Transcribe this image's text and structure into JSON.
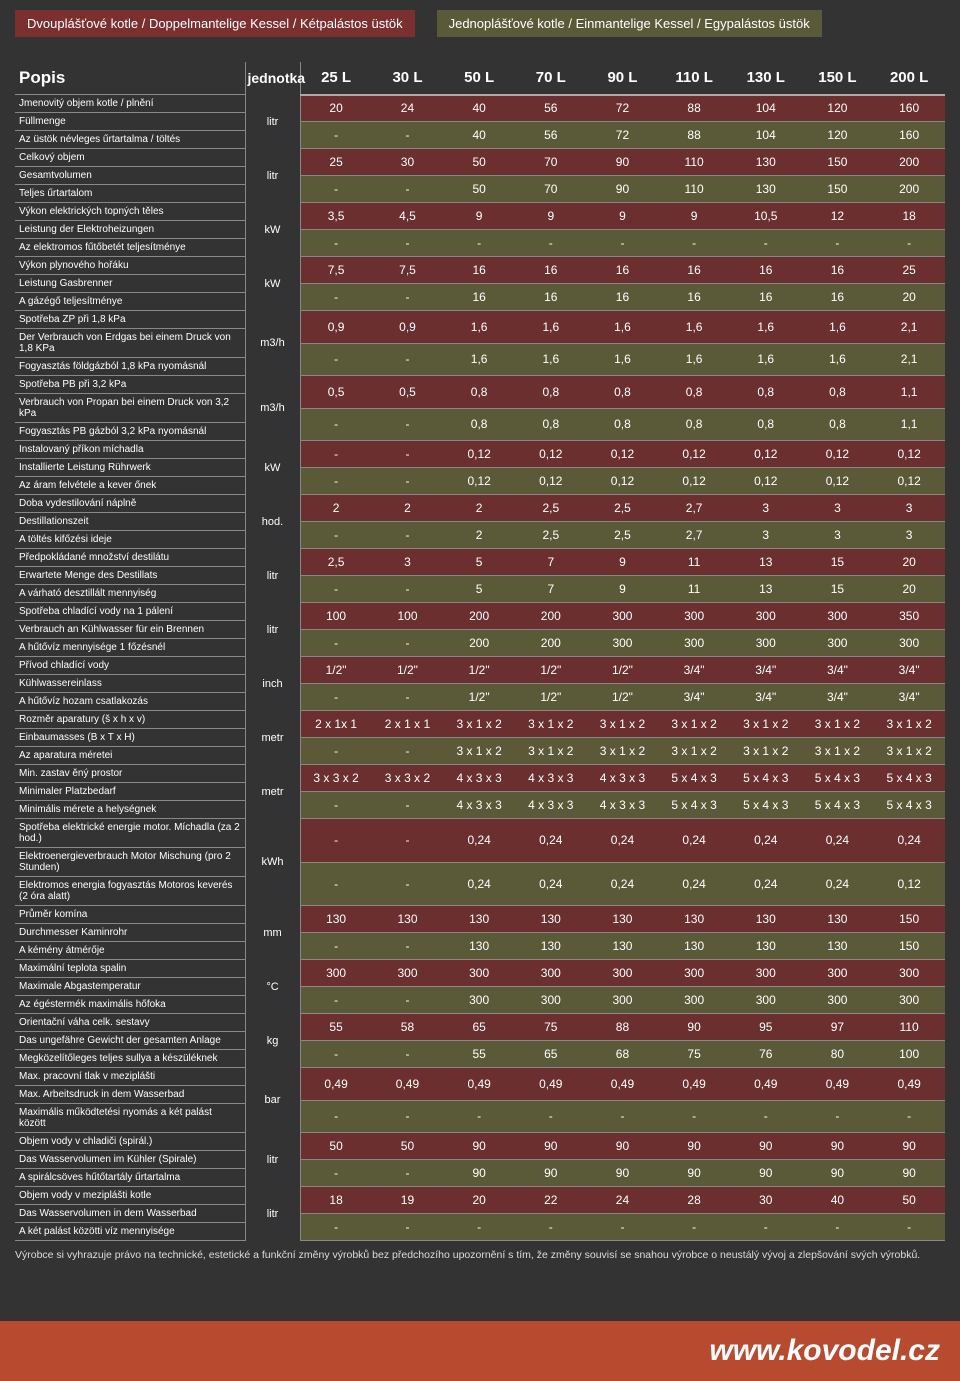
{
  "tabs": {
    "left": "Dvouplášťové kotle / Doppelmantelige Kessel / Kétpalástos üstök",
    "right": "Jednoplášťové kotle / Einmantelige Kessel / Egypalástos üstök"
  },
  "header": {
    "popis": "Popis",
    "unit": "jednotka",
    "cols": [
      "25 L",
      "30 L",
      "50 L",
      "70 L",
      "90 L",
      "110 L",
      "130 L",
      "150 L",
      "200 L"
    ]
  },
  "units": [
    "litr",
    "litr",
    "kW",
    "kW",
    "m3/h",
    "m3/h",
    "kW",
    "hod.",
    "litr",
    "litr",
    "inch",
    "metr",
    "metr",
    "kWh",
    "mm",
    "°C",
    "kg",
    "bar",
    "litr",
    "litr"
  ],
  "groups": [
    {
      "desc": [
        "Jmenovitý objem kotle / plnění",
        "Füllmenge",
        "Az üstök névleges űrtartalma / töltés"
      ],
      "rows": [
        [
          "20",
          "24",
          "40",
          "56",
          "72",
          "88",
          "104",
          "120",
          "160"
        ],
        [
          "-",
          "-",
          "40",
          "56",
          "72",
          "88",
          "104",
          "120",
          "160"
        ]
      ]
    },
    {
      "desc": [
        "Celkový objem",
        "Gesamtvolumen",
        "Teljes űrtartalom"
      ],
      "rows": [
        [
          "25",
          "30",
          "50",
          "70",
          "90",
          "110",
          "130",
          "150",
          "200"
        ],
        [
          "-",
          "-",
          "50",
          "70",
          "90",
          "110",
          "130",
          "150",
          "200"
        ]
      ]
    },
    {
      "desc": [
        "Výkon elektrických topných těles",
        "Leistung der Elektroheizungen",
        "Az elektromos fűtőbetét teljesítménye"
      ],
      "rows": [
        [
          "3,5",
          "4,5",
          "9",
          "9",
          "9",
          "9",
          "10,5",
          "12",
          "18"
        ],
        [
          "-",
          "-",
          "-",
          "-",
          "-",
          "-",
          "-",
          "-",
          "-"
        ]
      ]
    },
    {
      "desc": [
        "Výkon plynového hořáku",
        "Leistung Gasbrenner",
        "A gázégő teljesítménye"
      ],
      "rows": [
        [
          "7,5",
          "7,5",
          "16",
          "16",
          "16",
          "16",
          "16",
          "16",
          "25"
        ],
        [
          "-",
          "-",
          "16",
          "16",
          "16",
          "16",
          "16",
          "16",
          "20"
        ]
      ]
    },
    {
      "desc": [
        "Spotřeba ZP při 1,8 kPa",
        "Der Verbrauch von Erdgas bei einem Druck von 1,8 KPa",
        "Fogyasztás földgázból 1,8 kPa nyomásnál"
      ],
      "rows": [
        [
          "0,9",
          "0,9",
          "1,6",
          "1,6",
          "1,6",
          "1,6",
          "1,6",
          "1,6",
          "2,1"
        ],
        [
          "-",
          "-",
          "1,6",
          "1,6",
          "1,6",
          "1,6",
          "1,6",
          "1,6",
          "2,1"
        ]
      ]
    },
    {
      "desc": [
        "Spotřeba PB při 3,2 kPa",
        "Verbrauch von Propan bei einem Druck von 3,2 kPa",
        "Fogyasztás PB gázból 3,2 kPa nyomásnál"
      ],
      "rows": [
        [
          "0,5",
          "0,5",
          "0,8",
          "0,8",
          "0,8",
          "0,8",
          "0,8",
          "0,8",
          "1,1"
        ],
        [
          "-",
          "-",
          "0,8",
          "0,8",
          "0,8",
          "0,8",
          "0,8",
          "0,8",
          "1,1"
        ]
      ]
    },
    {
      "desc": [
        "Instalovaný příkon míchadla",
        "Installierte Leistung Rührwerk",
        "Az áram felvétele a kever őnek"
      ],
      "rows": [
        [
          "-",
          "-",
          "0,12",
          "0,12",
          "0,12",
          "0,12",
          "0,12",
          "0,12",
          "0,12"
        ],
        [
          "-",
          "-",
          "0,12",
          "0,12",
          "0,12",
          "0,12",
          "0,12",
          "0,12",
          "0,12"
        ]
      ]
    },
    {
      "desc": [
        "Doba vydestilování náplně",
        "Destillationszeit",
        "A töltés kifőzési ideje"
      ],
      "rows": [
        [
          "2",
          "2",
          "2",
          "2,5",
          "2,5",
          "2,7",
          "3",
          "3",
          "3"
        ],
        [
          "-",
          "-",
          "2",
          "2,5",
          "2,5",
          "2,7",
          "3",
          "3",
          "3"
        ]
      ]
    },
    {
      "desc": [
        "Předpokládané množství destilátu",
        "Erwartete Menge des Destillats",
        "A várható desztillált mennyiség"
      ],
      "rows": [
        [
          "2,5",
          "3",
          "5",
          "7",
          "9",
          "11",
          "13",
          "15",
          "20"
        ],
        [
          "-",
          "-",
          "5",
          "7",
          "9",
          "11",
          "13",
          "15",
          "20"
        ]
      ]
    },
    {
      "desc": [
        "Spotřeba chladící vody na 1 pálení",
        "Verbrauch an Kühlwasser für ein Brennen",
        "A hűtővíz mennyisége 1 főzésnél"
      ],
      "rows": [
        [
          "100",
          "100",
          "200",
          "200",
          "300",
          "300",
          "300",
          "300",
          "350"
        ],
        [
          "-",
          "-",
          "200",
          "200",
          "300",
          "300",
          "300",
          "300",
          "300"
        ]
      ]
    },
    {
      "desc": [
        "Přívod chladící vody",
        "Kühlwassereinlass",
        "A hűtővíz hozam csatlakozás"
      ],
      "rows": [
        [
          "1/2\"",
          "1/2\"",
          "1/2\"",
          "1/2\"",
          "1/2\"",
          "3/4\"",
          "3/4\"",
          "3/4\"",
          "3/4\""
        ],
        [
          "-",
          "-",
          "1/2\"",
          "1/2\"",
          "1/2\"",
          "3/4\"",
          "3/4\"",
          "3/4\"",
          "3/4\""
        ]
      ]
    },
    {
      "desc": [
        "Rozměr aparatury (š x h x v)",
        "Einbaumasses (B x T x H)",
        "Az aparatura méretei"
      ],
      "rows": [
        [
          "2 x 1x 1",
          "2 x 1 x 1",
          "3 x 1 x 2",
          "3 x 1 x 2",
          "3 x 1 x 2",
          "3 x 1 x 2",
          "3 x 1 x 2",
          "3 x 1 x 2",
          "3 x 1 x 2"
        ],
        [
          "-",
          "-",
          "3 x 1 x 2",
          "3 x 1 x 2",
          "3 x 1 x 2",
          "3 x 1 x 2",
          "3 x 1 x 2",
          "3 x 1 x 2",
          "3 x 1 x 2"
        ]
      ]
    },
    {
      "desc": [
        "Min. zastav ěný prostor",
        "Minimaler Platzbedarf",
        "Minimális mérete a helységnek"
      ],
      "rows": [
        [
          "3 x 3 x 2",
          "3 x 3 x 2",
          "4 x 3 x 3",
          "4 x 3 x 3",
          "4 x 3 x 3",
          "5 x 4 x 3",
          "5 x 4 x 3",
          "5 x 4 x 3",
          "5 x 4 x 3"
        ],
        [
          "-",
          "-",
          "4 x 3 x 3",
          "4 x 3 x 3",
          "4 x 3 x 3",
          "5 x 4 x 3",
          "5 x 4 x 3",
          "5 x 4 x 3",
          "5 x 4 x 3"
        ]
      ]
    },
    {
      "desc": [
        "Spotřeba elektrické energie motor. Míchadla (za 2 hod.)",
        "Elektroenergieverbrauch Motor Mischung (pro 2 Stunden)",
        "Elektromos energia fogyasztás Motoros keverés  (2 óra alatt)"
      ],
      "rows": [
        [
          "-",
          "-",
          "0,24",
          "0,24",
          "0,24",
          "0,24",
          "0,24",
          "0,24",
          "0,24"
        ],
        [
          "-",
          "-",
          "0,24",
          "0,24",
          "0,24",
          "0,24",
          "0,24",
          "0,24",
          "0,12"
        ]
      ]
    },
    {
      "desc": [
        "Průměr komína",
        "Durchmesser Kaminrohr",
        "A kémény átmérője"
      ],
      "rows": [
        [
          "130",
          "130",
          "130",
          "130",
          "130",
          "130",
          "130",
          "130",
          "150"
        ],
        [
          "-",
          "-",
          "130",
          "130",
          "130",
          "130",
          "130",
          "130",
          "150"
        ]
      ]
    },
    {
      "desc": [
        "Maximální teplota spalin",
        "Maximale Abgastemperatur",
        "Az égéstermék maximális hőfoka"
      ],
      "rows": [
        [
          "300",
          "300",
          "300",
          "300",
          "300",
          "300",
          "300",
          "300",
          "300"
        ],
        [
          "-",
          "-",
          "300",
          "300",
          "300",
          "300",
          "300",
          "300",
          "300"
        ]
      ]
    },
    {
      "desc": [
        "Orientační váha celk. sestavy",
        "Das ungefähre Gewicht der gesamten Anlage",
        "Megközelítőleges teljes sullya a készüléknek"
      ],
      "rows": [
        [
          "55",
          "58",
          "65",
          "75",
          "88",
          "90",
          "95",
          "97",
          "110"
        ],
        [
          "-",
          "-",
          "55",
          "65",
          "68",
          "75",
          "76",
          "80",
          "100"
        ]
      ]
    },
    {
      "desc": [
        "Max. pracovní tlak v meziplášti",
        "Max. Arbeitsdruck in dem Wasserbad",
        "Maximális működtetési nyomás a két palást között"
      ],
      "rows": [
        [
          "0,49",
          "0,49",
          "0,49",
          "0,49",
          "0,49",
          "0,49",
          "0,49",
          "0,49",
          "0,49"
        ],
        [
          "-",
          "-",
          "-",
          "-",
          "-",
          "-",
          "-",
          "-",
          "-"
        ]
      ]
    },
    {
      "desc": [
        "Objem vody v chladiči (spirál.)",
        "Das Wasservolumen im Kühler (Spirale)",
        "A spirálcsöves hűtőtartály űrtartalma"
      ],
      "rows": [
        [
          "50",
          "50",
          "90",
          "90",
          "90",
          "90",
          "90",
          "90",
          "90"
        ],
        [
          "-",
          "-",
          "90",
          "90",
          "90",
          "90",
          "90",
          "90",
          "90"
        ]
      ]
    },
    {
      "desc": [
        "Objem vody v meziplášti kotle",
        "Das Wasservolumen in dem Wasserbad",
        "A két palást közötti víz mennyisége"
      ],
      "rows": [
        [
          "18",
          "19",
          "20",
          "22",
          "24",
          "28",
          "30",
          "40",
          "50"
        ],
        [
          "-",
          "-",
          "-",
          "-",
          "-",
          "-",
          "-",
          "-",
          "-"
        ]
      ]
    }
  ],
  "footnote": "Výrobce si vyhrazuje právo na technické, estetické a funkční změny výrobků bez předchozího upozornění s tím, že změny souvisí se snahou výrobce o neustálý vývoj a zlepšování svých výrobků.",
  "footer": "www.kovodel.cz",
  "colors": {
    "rowA": "#6b2f2f",
    "rowB": "#5a5a38",
    "bg": "#333333",
    "footer": "#b84b2f",
    "tabLeft": "#7b2f2f",
    "tabRight": "#5a5a38"
  }
}
